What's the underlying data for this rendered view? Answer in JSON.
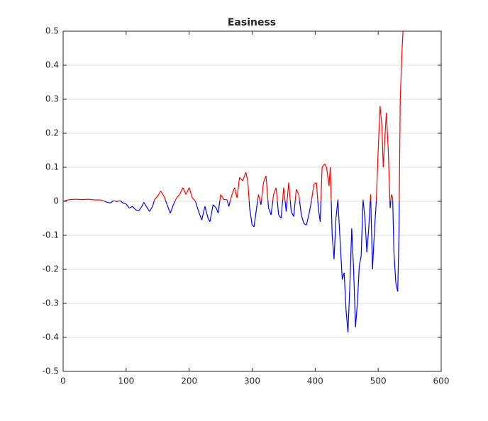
{
  "chart_data": {
    "type": "line",
    "title": "Easiness",
    "x": [
      0,
      10,
      20,
      30,
      40,
      50,
      60,
      70,
      75,
      80,
      85,
      90,
      95,
      100,
      105,
      110,
      115,
      120,
      125,
      128,
      132,
      137,
      142,
      145,
      150,
      155,
      160,
      165,
      170,
      175,
      180,
      185,
      190,
      195,
      200,
      205,
      210,
      215,
      220,
      225,
      230,
      233,
      238,
      243,
      246,
      250,
      255,
      260,
      263,
      268,
      272,
      276,
      280,
      285,
      290,
      293,
      296,
      300,
      303,
      307,
      310,
      314,
      318,
      322,
      326,
      330,
      334,
      338,
      342,
      346,
      350,
      354,
      358,
      362,
      366,
      370,
      374,
      378,
      382,
      386,
      390,
      394,
      398,
      402,
      405,
      408,
      411,
      415,
      418,
      422,
      424,
      427,
      430,
      433,
      436,
      440,
      443,
      446,
      449,
      452,
      455,
      458,
      461,
      464,
      467,
      470,
      473,
      476,
      479,
      482,
      485,
      488,
      491,
      494,
      497,
      500,
      503,
      506,
      508,
      511,
      513,
      516,
      519,
      521,
      523,
      525,
      528,
      531,
      533,
      535,
      538,
      540
    ],
    "values": [
      0,
      0.005,
      0.006,
      0.005,
      0.006,
      0.004,
      0.004,
      -0.003,
      -0.005,
      0.002,
      -0.001,
      0.002,
      -0.005,
      -0.008,
      -0.02,
      -0.015,
      -0.025,
      -0.028,
      -0.015,
      -0.003,
      -0.015,
      -0.03,
      -0.015,
      0.005,
      0.015,
      0.03,
      0.015,
      -0.01,
      -0.035,
      -0.01,
      0.01,
      0.02,
      0.04,
      0.02,
      0.04,
      0.01,
      0.0,
      -0.03,
      -0.055,
      -0.015,
      -0.05,
      -0.06,
      -0.01,
      -0.02,
      -0.035,
      0.02,
      0.005,
      0.005,
      -0.015,
      0.02,
      0.04,
      0.01,
      0.07,
      0.06,
      0.085,
      0.06,
      -0.02,
      -0.07,
      -0.075,
      -0.02,
      0.02,
      -0.01,
      0.055,
      0.075,
      -0.02,
      -0.04,
      0.02,
      0.04,
      -0.04,
      -0.05,
      0.04,
      -0.03,
      0.055,
      -0.03,
      -0.045,
      0.035,
      0.02,
      -0.04,
      -0.065,
      -0.07,
      -0.04,
      0.0,
      0.05,
      0.055,
      -0.02,
      -0.06,
      0.1,
      0.11,
      0.1,
      0.045,
      0.1,
      -0.1,
      -0.17,
      -0.05,
      0.005,
      -0.13,
      -0.23,
      -0.21,
      -0.32,
      -0.385,
      -0.25,
      -0.08,
      -0.2,
      -0.37,
      -0.3,
      -0.19,
      -0.16,
      0.005,
      -0.05,
      -0.15,
      -0.08,
      0.02,
      -0.2,
      -0.09,
      0.0,
      0.15,
      0.28,
      0.22,
      0.1,
      0.2,
      0.26,
      0.15,
      -0.02,
      0.02,
      0.01,
      -0.15,
      -0.24,
      -0.265,
      -0.1,
      0.3,
      0.45,
      0.52
    ],
    "color_positive": "#ff0000",
    "color_negative": "#0000ff",
    "xlim": [
      0,
      600
    ],
    "xticks": [
      0,
      100,
      200,
      300,
      400,
      500,
      600
    ],
    "ylim": [
      -0.5,
      0.5
    ],
    "yticks": [
      -0.5,
      -0.4,
      -0.3,
      -0.2,
      -0.1,
      0,
      0.1,
      0.2,
      0.3,
      0.4,
      0.5
    ],
    "grid": true
  }
}
